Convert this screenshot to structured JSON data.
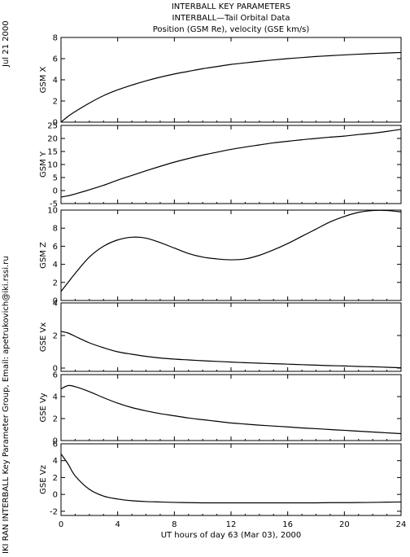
{
  "header": {
    "title": "INTERBALL KEY PARAMETERS",
    "subtitle": "INTERBALL—Tail Orbital Data",
    "units_line": "Position (GSM Re), velocity (GSE km/s)"
  },
  "side": {
    "date": "Jul 21 2000",
    "credit": "IKI RAN INTERBALL Key Parameter Group, Email: apetrukovich@iki.rssi.ru"
  },
  "colors": {
    "line": "#000000",
    "background": "#ffffff"
  },
  "chart_data": {
    "type": "line",
    "x": [
      0,
      0.5,
      1,
      2,
      3,
      4,
      5,
      6,
      7,
      8,
      9,
      10,
      11,
      12,
      13,
      14,
      15,
      16,
      17,
      18,
      19,
      20,
      21,
      22,
      23,
      24
    ],
    "xlabel": "UT hours of day  63 (Mar 03), 2000",
    "xlim": [
      0,
      24
    ],
    "xticks": [
      0,
      4,
      8,
      12,
      16,
      20,
      24
    ],
    "series": [
      {
        "name": "GSM X",
        "ylabel": "GSM X",
        "ylim": [
          0,
          8
        ],
        "yticks": [
          0,
          2,
          4,
          6,
          8
        ],
        "values": [
          0.0,
          0.55,
          1.0,
          1.8,
          2.5,
          3.05,
          3.5,
          3.9,
          4.25,
          4.55,
          4.8,
          5.05,
          5.25,
          5.45,
          5.6,
          5.75,
          5.88,
          6.0,
          6.1,
          6.2,
          6.28,
          6.35,
          6.42,
          6.48,
          6.53,
          6.58
        ]
      },
      {
        "name": "GSM Y",
        "ylabel": "GSM Y",
        "ylim": [
          -5,
          25
        ],
        "yticks": [
          -5,
          0,
          5,
          10,
          15,
          20,
          25
        ],
        "values": [
          -2.5,
          -2.0,
          -1.3,
          0.3,
          2.0,
          4.0,
          5.8,
          7.6,
          9.3,
          10.9,
          12.3,
          13.6,
          14.7,
          15.8,
          16.7,
          17.5,
          18.3,
          18.9,
          19.5,
          20.0,
          20.5,
          20.9,
          21.5,
          22.0,
          22.7,
          23.5
        ]
      },
      {
        "name": "GSM Z",
        "ylabel": "GSM Z",
        "ylim": [
          0,
          10
        ],
        "yticks": [
          0,
          2,
          4,
          6,
          8,
          10
        ],
        "values": [
          1.0,
          2.0,
          3.0,
          4.8,
          6.0,
          6.7,
          7.0,
          6.9,
          6.4,
          5.8,
          5.2,
          4.8,
          4.6,
          4.5,
          4.6,
          5.0,
          5.6,
          6.3,
          7.1,
          7.9,
          8.7,
          9.3,
          9.75,
          9.95,
          9.95,
          9.8
        ]
      },
      {
        "name": "GSE Vx",
        "ylabel": "GSE Vx",
        "ylim": [
          -0.2,
          4
        ],
        "yticks": [
          0,
          2,
          4
        ],
        "values": [
          2.25,
          2.15,
          1.95,
          1.55,
          1.25,
          1.0,
          0.85,
          0.72,
          0.62,
          0.55,
          0.5,
          0.45,
          0.41,
          0.37,
          0.33,
          0.3,
          0.27,
          0.24,
          0.21,
          0.18,
          0.15,
          0.13,
          0.1,
          0.08,
          0.05,
          0.02
        ]
      },
      {
        "name": "GSE Vy",
        "ylabel": "GSE Vy",
        "ylim": [
          0,
          6
        ],
        "yticks": [
          0,
          2,
          4,
          6
        ],
        "values": [
          4.7,
          5.0,
          4.9,
          4.45,
          3.9,
          3.4,
          3.0,
          2.7,
          2.45,
          2.25,
          2.05,
          1.9,
          1.75,
          1.6,
          1.5,
          1.4,
          1.32,
          1.24,
          1.15,
          1.08,
          1.0,
          0.93,
          0.85,
          0.78,
          0.7,
          0.63
        ]
      },
      {
        "name": "GSE Vz",
        "ylabel": "GSE Vz",
        "ylim": [
          -2.5,
          6
        ],
        "yticks": [
          -2,
          0,
          2,
          4,
          6
        ],
        "values": [
          4.8,
          3.6,
          2.2,
          0.6,
          -0.2,
          -0.55,
          -0.75,
          -0.85,
          -0.9,
          -0.95,
          -0.98,
          -1.0,
          -1.0,
          -1.0,
          -1.0,
          -1.0,
          -1.0,
          -1.0,
          -1.0,
          -1.0,
          -0.98,
          -0.98,
          -0.97,
          -0.95,
          -0.92,
          -0.9
        ]
      }
    ]
  }
}
